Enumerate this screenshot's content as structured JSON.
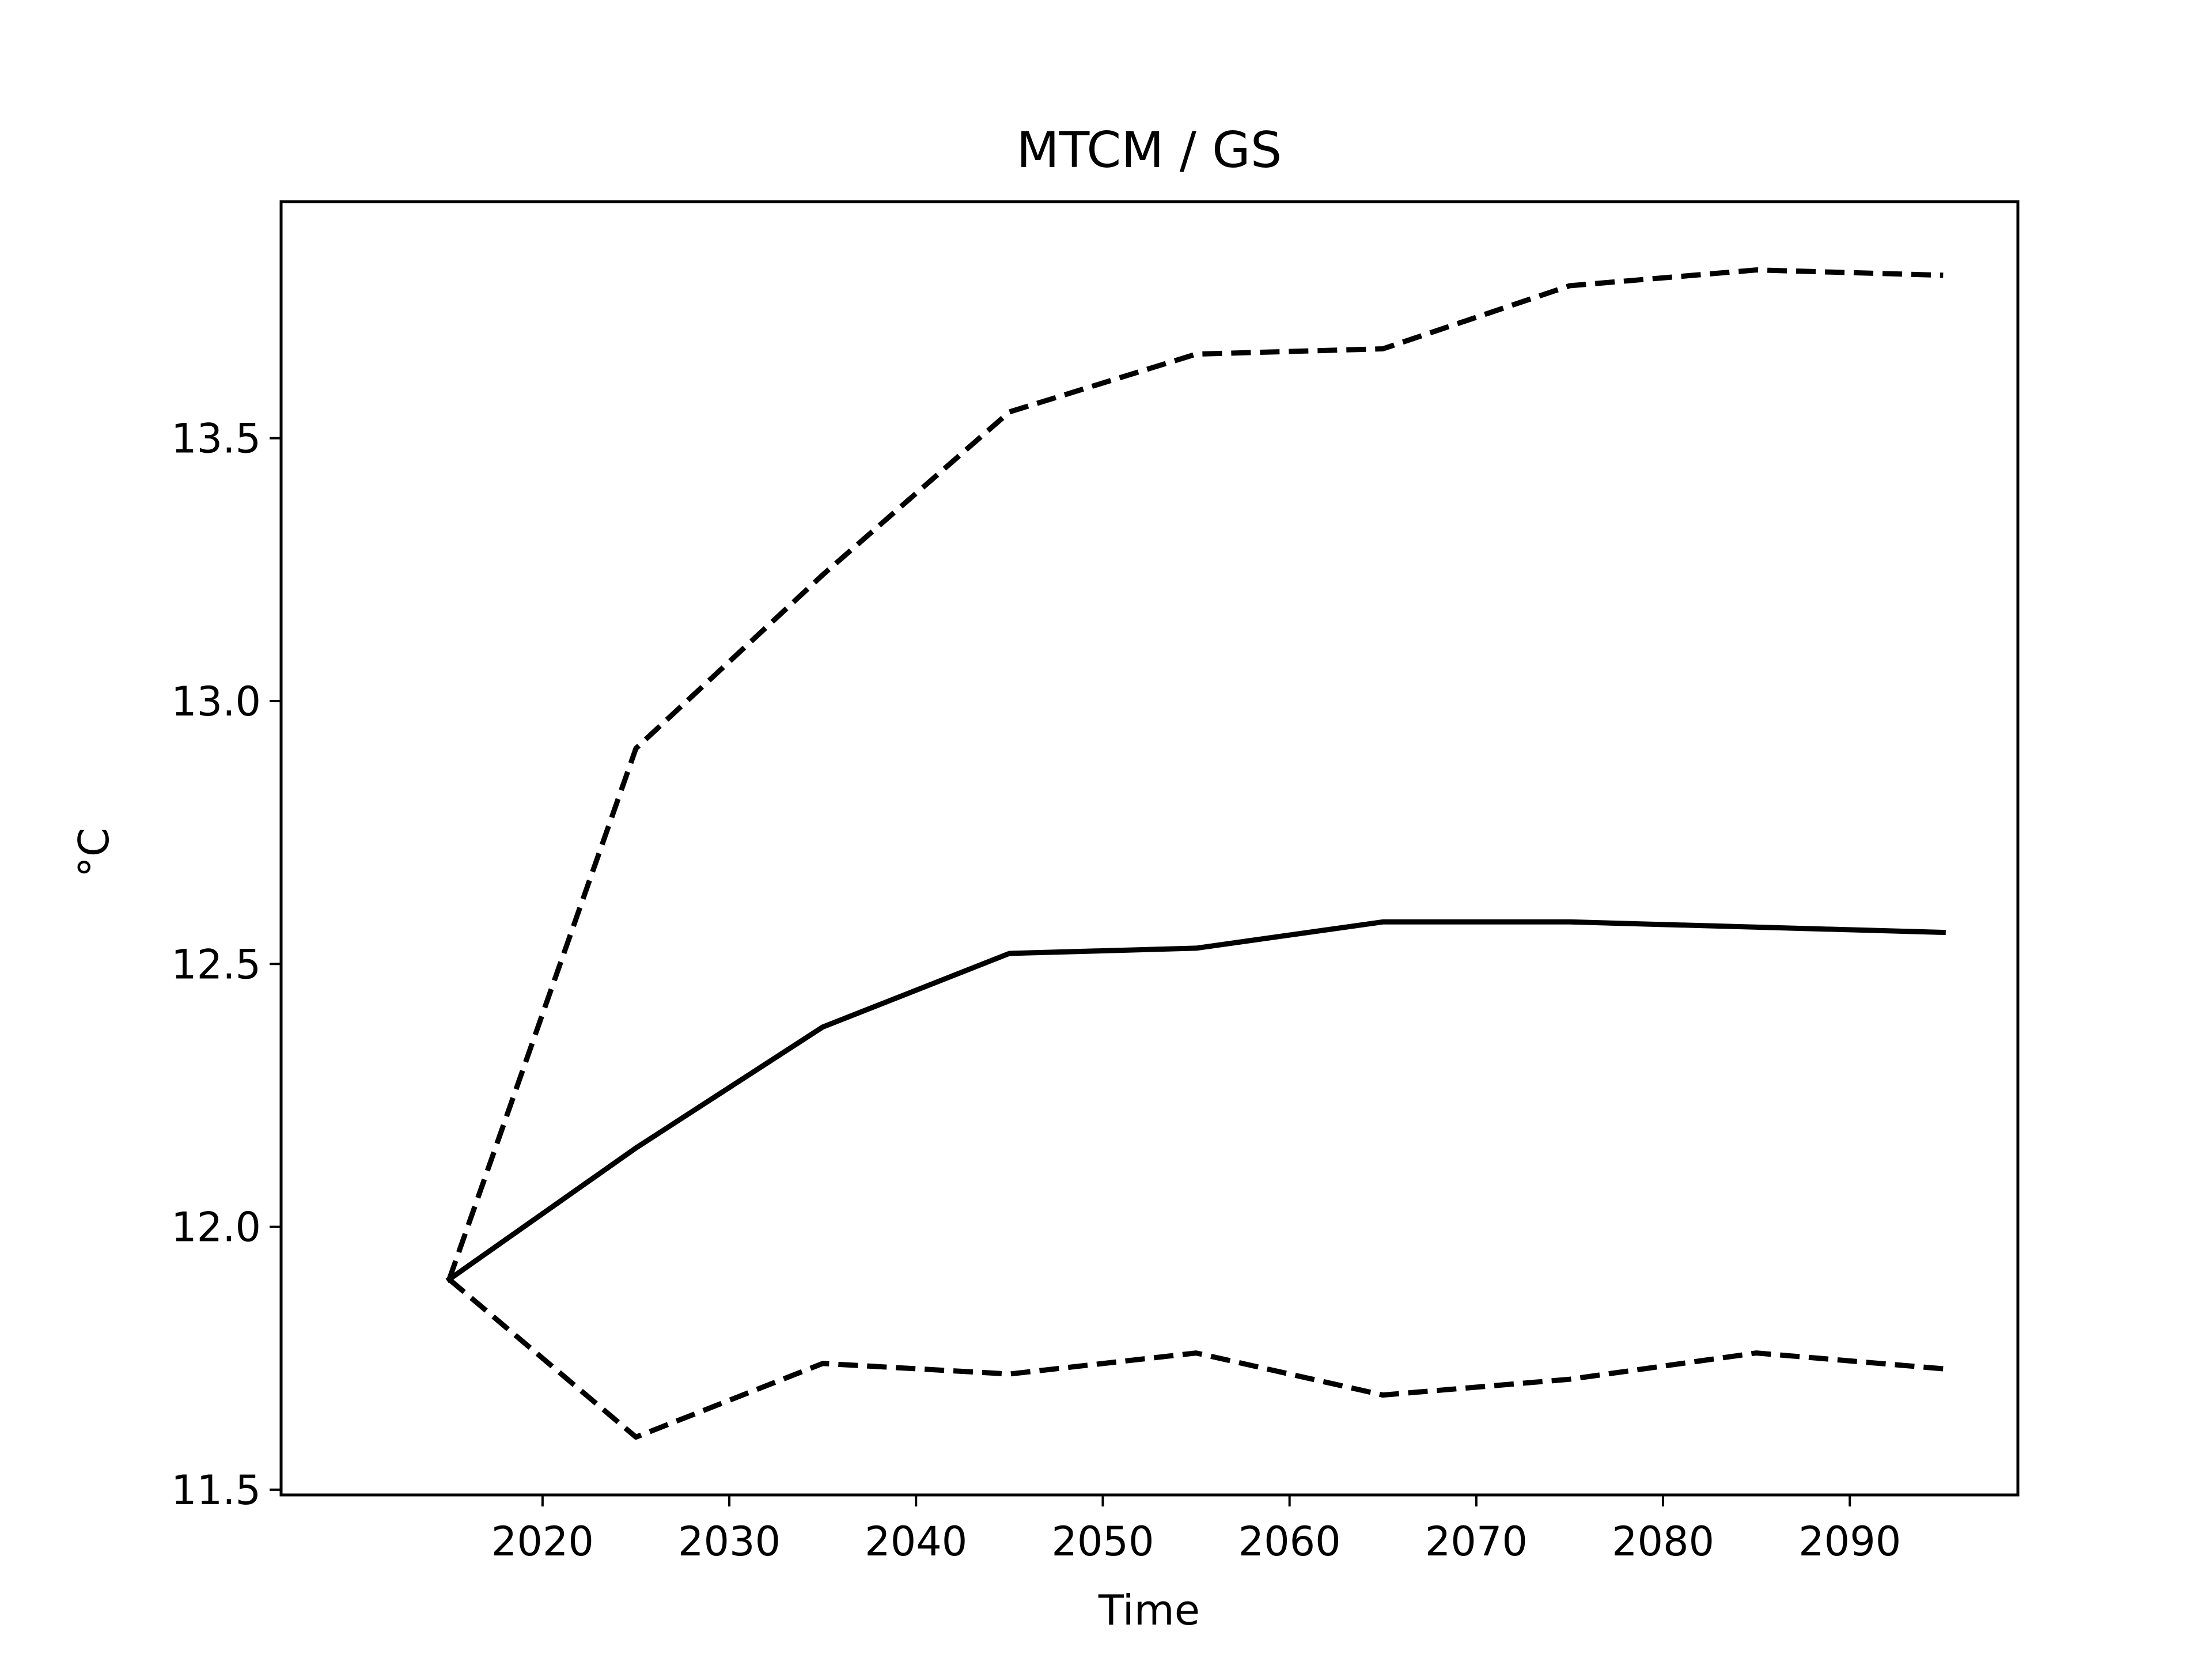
{
  "chart_data": {
    "type": "line",
    "title": "MTCM / GS",
    "xlabel": "Time",
    "ylabel": "°C",
    "x": [
      2015,
      2025,
      2035,
      2045,
      2055,
      2065,
      2075,
      2085,
      2095
    ],
    "series": [
      {
        "style": "solid",
        "color": "#000000",
        "values": [
          11.9,
          12.15,
          12.38,
          12.52,
          12.53,
          12.58,
          12.58,
          12.57,
          12.56
        ]
      },
      {
        "style": "dashed",
        "color": "#000000",
        "values": [
          11.9,
          12.91,
          13.24,
          13.55,
          13.66,
          13.67,
          13.79,
          13.82,
          13.81
        ]
      },
      {
        "style": "dashed",
        "color": "#000000",
        "values": [
          11.9,
          11.6,
          11.74,
          11.72,
          11.76,
          11.68,
          11.71,
          11.76,
          11.73
        ]
      }
    ],
    "xlim": [
      2006,
      2099
    ],
    "ylim": [
      11.49,
      13.95
    ],
    "xticks": [
      "2020",
      "2030",
      "2040",
      "2050",
      "2060",
      "2070",
      "2080",
      "2090"
    ],
    "yticks": [
      "11.5",
      "12.0",
      "12.5",
      "13.0",
      "13.5"
    ],
    "grid": false,
    "legend": "none"
  }
}
